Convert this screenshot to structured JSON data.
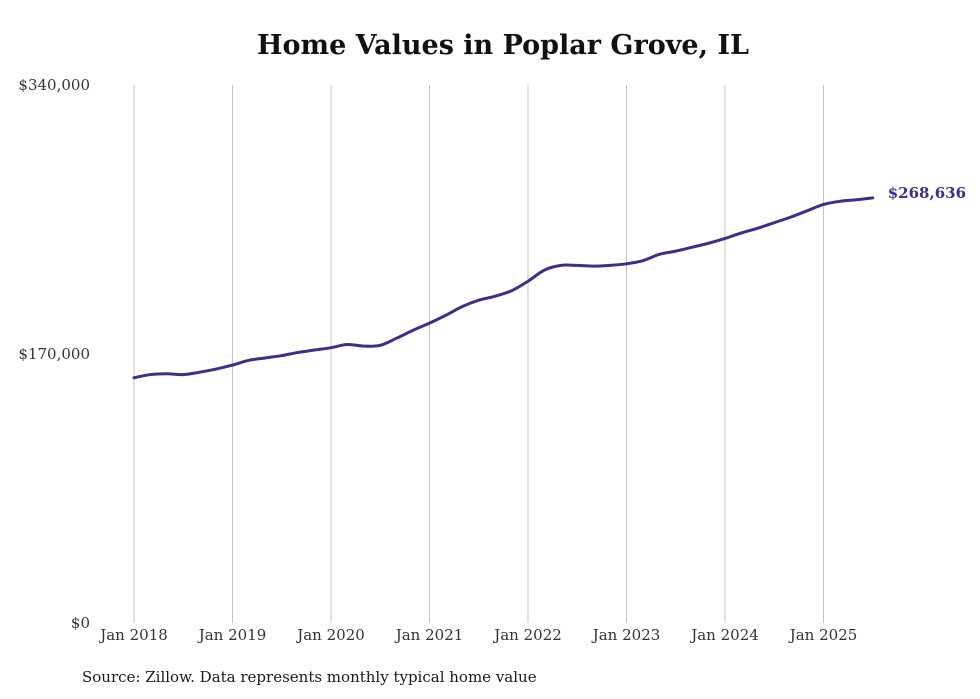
{
  "chart_data": {
    "type": "line",
    "title": "Home Values in Poplar Grove, IL",
    "xlabel": "",
    "ylabel": "",
    "y_ticks": [
      "$0",
      "$170,000",
      "$340,000"
    ],
    "y_tick_values": [
      0,
      170000,
      340000
    ],
    "ylim": [
      0,
      340000
    ],
    "x_ticks": [
      "Jan 2018",
      "Jan 2019",
      "Jan 2020",
      "Jan 2021",
      "Jan 2022",
      "Jan 2023",
      "Jan 2024",
      "Jan 2025"
    ],
    "xlim": [
      "2018-01",
      "2025-07"
    ],
    "grid": "vertical",
    "line_color": "#3a2f8c",
    "series": [
      {
        "x": [
          "2018-01",
          "2018-03",
          "2018-05",
          "2018-07",
          "2018-09",
          "2018-11",
          "2019-01",
          "2019-03",
          "2019-05",
          "2019-07",
          "2019-09",
          "2019-11",
          "2020-01",
          "2020-03",
          "2020-05",
          "2020-07",
          "2020-09",
          "2020-11",
          "2021-01",
          "2021-03",
          "2021-05",
          "2021-07",
          "2021-09",
          "2021-11",
          "2022-01",
          "2022-03",
          "2022-05",
          "2022-07",
          "2022-09",
          "2022-11",
          "2023-01",
          "2023-03",
          "2023-05",
          "2023-07",
          "2023-09",
          "2023-11",
          "2024-01",
          "2024-03",
          "2024-05",
          "2024-07",
          "2024-09",
          "2024-11",
          "2025-01",
          "2025-03",
          "2025-05",
          "2025-07"
        ],
        "values": [
          155000,
          157000,
          157500,
          157000,
          158500,
          160500,
          163000,
          166000,
          167500,
          169000,
          171000,
          172500,
          174000,
          176000,
          175000,
          175500,
          180000,
          185000,
          189500,
          194500,
          200000,
          204000,
          206500,
          210000,
          216000,
          223000,
          226000,
          226000,
          225500,
          226000,
          227000,
          229000,
          233000,
          235000,
          237500,
          240000,
          243000,
          246500,
          249500,
          253000,
          256500,
          260500,
          264500,
          266500,
          267500,
          268636
        ]
      }
    ],
    "end_label": "$268,636"
  },
  "footer": {
    "source": "Source: Zillow. Data represents monthly typical home value"
  }
}
